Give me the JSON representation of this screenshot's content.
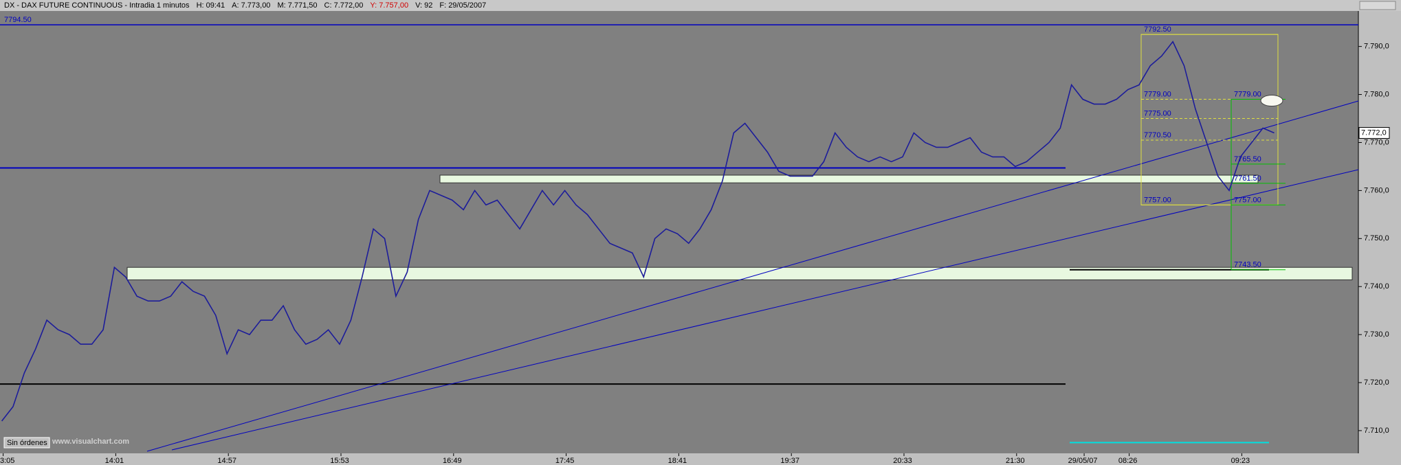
{
  "chart_data": {
    "type": "line",
    "title": "DX - DAX FUTURE CONTINUOUS - Intradia 1 minutos",
    "info": [
      "H: 09:41",
      "A: 7.773,00",
      "M: 7.771,50",
      "C: 7.772,00",
      "Y: 7.757,00",
      "V: 92",
      "F: 29/05/2007"
    ],
    "color": "#1c1c9a",
    "categories": [
      "3:05",
      null,
      null,
      null,
      null,
      null,
      null,
      null,
      null,
      null,
      "14:01",
      null,
      null,
      null,
      null,
      null,
      null,
      null,
      null,
      null,
      "14:57",
      null,
      null,
      null,
      null,
      null,
      null,
      null,
      null,
      null,
      "15:53",
      null,
      null,
      null,
      null,
      null,
      null,
      null,
      null,
      null,
      "16:49",
      null,
      null,
      null,
      null,
      null,
      null,
      null,
      null,
      null,
      "17:45",
      null,
      null,
      null,
      null,
      null,
      null,
      null,
      null,
      null,
      "18:41",
      null,
      null,
      null,
      null,
      null,
      null,
      null,
      null,
      null,
      "19:37",
      null,
      null,
      null,
      null,
      null,
      null,
      null,
      null,
      null,
      "20:33",
      null,
      null,
      null,
      null,
      null,
      null,
      null,
      null,
      null,
      "21:30",
      null,
      null,
      null,
      null,
      null,
      "29/05/07",
      null,
      null,
      null,
      "08:26",
      null,
      null,
      null,
      null,
      null,
      null,
      null,
      null,
      null,
      "09:23",
      null,
      null,
      null
    ],
    "values": [
      7712,
      7715,
      7722,
      7727,
      7733,
      7731,
      7730,
      7728,
      7728,
      7731,
      7744,
      7742,
      7738,
      7737,
      7737,
      7738,
      7741,
      7739,
      7738,
      7734,
      7726,
      7731,
      7730,
      7733,
      7733,
      7736,
      7731,
      7728,
      7729,
      7731,
      7728,
      7733,
      7742,
      7752,
      7750,
      7738,
      7743,
      7754,
      7760,
      7759,
      7758,
      7756,
      7760,
      7757,
      7758,
      7755,
      7752,
      7756,
      7760,
      7757,
      7760,
      7757,
      7755,
      7752,
      7749,
      7748,
      7747,
      7742,
      7750,
      7752,
      7751,
      7749,
      7752,
      7756,
      7762,
      7772,
      7774,
      7771,
      7768,
      7764,
      7763,
      7763,
      7763,
      7766,
      7772,
      7769,
      7767,
      7766,
      7767,
      7766,
      7767,
      7772,
      7770,
      7769,
      7769,
      7770,
      7771,
      7768,
      7767,
      7767,
      7765,
      7766,
      7768,
      7770,
      7773,
      7782,
      7779,
      7778,
      7778,
      7779,
      7781,
      7782,
      7786,
      7788,
      7791,
      7786,
      7777,
      7770,
      7763,
      7760,
      7767,
      7770,
      7773,
      7772
    ],
    "ylim": [
      7705.7,
      7797.1
    ],
    "yticks": [
      {
        "value": 7710,
        "label": "7.710,0"
      },
      {
        "value": 7720,
        "label": "7.720,0"
      },
      {
        "value": 7730,
        "label": "7.730,0"
      },
      {
        "value": 7740,
        "label": "7.740,0"
      },
      {
        "value": 7750,
        "label": "7.750,0"
      },
      {
        "value": 7760,
        "label": "7.760,0"
      },
      {
        "value": 7770,
        "label": "7.770,0"
      },
      {
        "value": 7780,
        "label": "7.780,0"
      },
      {
        "value": 7790,
        "label": "7.790,0"
      }
    ],
    "last_price": {
      "value": 7772,
      "label": "7.772,0"
    },
    "top_level": {
      "value": 7794.5,
      "label": "7794.50"
    },
    "lines": [
      {
        "value": 7764.7,
        "color": "#0000c0"
      },
      {
        "value": 7719.7,
        "color": "#000000"
      },
      {
        "value": 7743.5,
        "color": "#000000"
      },
      {
        "value": 7707.5,
        "color": "#00e0e0"
      }
    ],
    "zones": [
      {
        "low": 7761.6,
        "high": 7763.2
      },
      {
        "low": 7741.4,
        "high": 7744.0
      }
    ],
    "fib_left": [
      {
        "value": 7792.5,
        "label": "7792.50"
      },
      {
        "value": 7779,
        "label": "7779.00"
      },
      {
        "value": 7775,
        "label": "7775.00"
      },
      {
        "value": 7770.5,
        "label": "7770.50"
      },
      {
        "value": 7757,
        "label": "7757.00"
      }
    ],
    "fib_right": [
      {
        "value": 7779,
        "label": "7779.00"
      },
      {
        "value": 7765.5,
        "label": "7765.50"
      },
      {
        "value": 7761.5,
        "label": "7761.50"
      },
      {
        "value": 7757,
        "label": "7757.00"
      },
      {
        "value": 7743.5,
        "label": "7743.50"
      }
    ],
    "status": "Sin órdenes",
    "watermark": "www.visualchart.com"
  }
}
